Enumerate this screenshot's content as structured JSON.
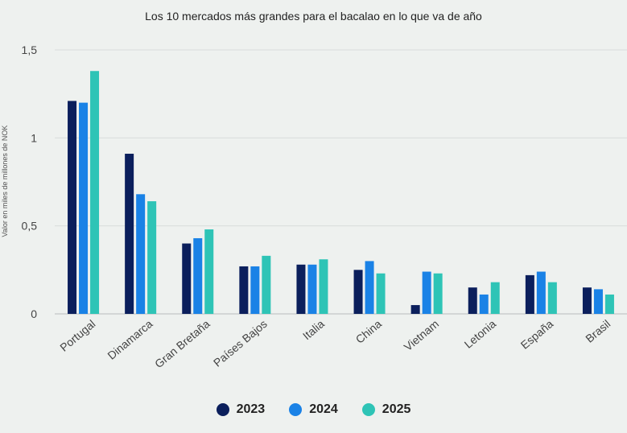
{
  "chart_data": {
    "type": "bar",
    "title": "Los 10 mercados más grandes para el bacalao en lo que va de año",
    "xlabel": "",
    "ylabel": "Valor en miles de millones de NOK",
    "ylim": [
      0,
      1.5
    ],
    "yticks": [
      0,
      0.5,
      1,
      1.5
    ],
    "ytick_labels": [
      "0",
      "0,5",
      "1",
      "1,5"
    ],
    "grid": true,
    "legend_position": "bottom",
    "categories": [
      "Portugal",
      "Dinamarca",
      "Gran Bretaña",
      "Países Bajos",
      "Italia",
      "China",
      "Vietnam",
      "Letonia",
      "España",
      "Brasil"
    ],
    "series": [
      {
        "name": "2023",
        "color": "#0b1f5c",
        "values": [
          1.21,
          0.91,
          0.4,
          0.27,
          0.28,
          0.25,
          0.05,
          0.15,
          0.22,
          0.15
        ]
      },
      {
        "name": "2024",
        "color": "#1a82e6",
        "values": [
          1.2,
          0.68,
          0.43,
          0.27,
          0.28,
          0.3,
          0.24,
          0.11,
          0.24,
          0.14
        ]
      },
      {
        "name": "2025",
        "color": "#2ec4b6",
        "values": [
          1.38,
          0.64,
          0.48,
          0.33,
          0.31,
          0.23,
          0.23,
          0.18,
          0.18,
          0.11
        ]
      }
    ]
  }
}
